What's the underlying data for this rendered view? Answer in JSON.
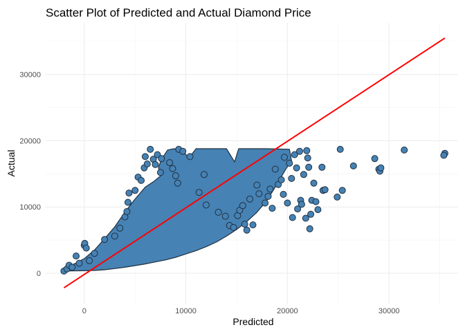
{
  "chart_data": {
    "type": "scatter",
    "title": "Scatter Plot of Predicted and Actual Diamond Price",
    "xlabel": "Predicted",
    "ylabel": "Actual",
    "xlim": [
      -3800,
      36800
    ],
    "ylim": [
      -4700,
      37800
    ],
    "x_ticks": [
      0,
      10000,
      20000,
      30000
    ],
    "y_ticks": [
      0,
      10000,
      20000,
      30000
    ],
    "grid": true,
    "legend": "none",
    "point_fill": "#4682b4",
    "point_stroke": "#1f2f3f",
    "line_color": "#ff0000",
    "dense_cloud": [
      [
        -2000,
        326
      ],
      [
        -1200,
        340
      ],
      [
        -500,
        360
      ],
      [
        0,
        380
      ],
      [
        1000,
        420
      ],
      [
        2000,
        520
      ],
      [
        3000,
        700
      ],
      [
        4000,
        900
      ],
      [
        5000,
        1150
      ],
      [
        6000,
        1400
      ],
      [
        7000,
        1700
      ],
      [
        8000,
        2000
      ],
      [
        9000,
        2400
      ],
      [
        10000,
        2900
      ],
      [
        11000,
        3400
      ],
      [
        12000,
        4000
      ],
      [
        13000,
        4700
      ],
      [
        14000,
        5600
      ],
      [
        15000,
        6600
      ],
      [
        16000,
        7800
      ],
      [
        17000,
        9200
      ],
      [
        18000,
        11000
      ],
      [
        19000,
        13500
      ],
      [
        19800,
        15600
      ],
      [
        20400,
        17000
      ],
      [
        20200,
        18700
      ],
      [
        18000,
        18800
      ],
      [
        16000,
        18800
      ],
      [
        15200,
        18800
      ],
      [
        14800,
        16800
      ],
      [
        14000,
        18800
      ],
      [
        12000,
        18800
      ],
      [
        11000,
        18800
      ],
      [
        10300,
        17400
      ],
      [
        9600,
        18600
      ],
      [
        8800,
        18800
      ],
      [
        8200,
        18600
      ],
      [
        7600,
        17200
      ],
      [
        7300,
        15900
      ],
      [
        7600,
        14800
      ],
      [
        6800,
        13800
      ],
      [
        6000,
        13000
      ],
      [
        4900,
        11000
      ],
      [
        3900,
        9000
      ],
      [
        3000,
        7000
      ],
      [
        2000,
        5200
      ],
      [
        1000,
        3500
      ],
      [
        0,
        2200
      ],
      [
        -1000,
        1400
      ],
      [
        -2000,
        800
      ]
    ],
    "points": [
      [
        -2000,
        326
      ],
      [
        -1700,
        650
      ],
      [
        -1500,
        1200
      ],
      [
        -1200,
        900
      ],
      [
        -800,
        2600
      ],
      [
        -500,
        1500
      ],
      [
        0,
        4200
      ],
      [
        50,
        4500
      ],
      [
        200,
        3800
      ],
      [
        500,
        1900
      ],
      [
        1000,
        3000
      ],
      [
        2000,
        5100
      ],
      [
        3000,
        5600
      ],
      [
        3500,
        6800
      ],
      [
        4000,
        8500
      ],
      [
        4200,
        9300
      ],
      [
        4400,
        12100
      ],
      [
        4300,
        10700
      ],
      [
        5000,
        12500
      ],
      [
        5300,
        14500
      ],
      [
        5600,
        14000
      ],
      [
        5900,
        15900
      ],
      [
        6000,
        17600
      ],
      [
        6200,
        16500
      ],
      [
        6500,
        18700
      ],
      [
        6800,
        17200
      ],
      [
        7000,
        16400
      ],
      [
        7200,
        17900
      ],
      [
        7600,
        17300
      ],
      [
        7500,
        15200
      ],
      [
        8400,
        16700
      ],
      [
        8700,
        15800
      ],
      [
        9000,
        14700
      ],
      [
        9200,
        13600
      ],
      [
        9300,
        18700
      ],
      [
        9700,
        18400
      ],
      [
        10400,
        17600
      ],
      [
        11300,
        12200
      ],
      [
        11800,
        14900
      ],
      [
        12000,
        10300
      ],
      [
        13200,
        9200
      ],
      [
        13900,
        8600
      ],
      [
        14300,
        7200
      ],
      [
        14700,
        6900
      ],
      [
        15100,
        8700
      ],
      [
        15300,
        9500
      ],
      [
        15600,
        10200
      ],
      [
        15800,
        7400
      ],
      [
        16000,
        6500
      ],
      [
        16300,
        11200
      ],
      [
        16600,
        7300
      ],
      [
        17000,
        13300
      ],
      [
        17200,
        12000
      ],
      [
        17800,
        10600
      ],
      [
        18100,
        11600
      ],
      [
        18300,
        12700
      ],
      [
        18500,
        9800
      ],
      [
        18800,
        15700
      ],
      [
        19100,
        13400
      ],
      [
        19400,
        14100
      ],
      [
        19600,
        11900
      ],
      [
        19700,
        17500
      ],
      [
        20000,
        10600
      ],
      [
        20200,
        16600
      ],
      [
        20400,
        14300
      ],
      [
        20500,
        8400
      ],
      [
        20700,
        17900
      ],
      [
        20900,
        15900
      ],
      [
        21000,
        9700
      ],
      [
        21200,
        18400
      ],
      [
        21300,
        11000
      ],
      [
        21400,
        10400
      ],
      [
        21600,
        14900
      ],
      [
        21800,
        8300
      ],
      [
        21900,
        18500
      ],
      [
        22000,
        17400
      ],
      [
        22100,
        16000
      ],
      [
        22200,
        6700
      ],
      [
        22300,
        8900
      ],
      [
        22400,
        11000
      ],
      [
        22600,
        13600
      ],
      [
        22800,
        10800
      ],
      [
        23000,
        9600
      ],
      [
        23400,
        16000
      ],
      [
        23500,
        12500
      ],
      [
        23700,
        12600
      ],
      [
        24900,
        11500
      ],
      [
        25200,
        18700
      ],
      [
        25400,
        12500
      ],
      [
        26500,
        16200
      ],
      [
        28600,
        17300
      ],
      [
        29000,
        15700
      ],
      [
        29100,
        15400
      ],
      [
        29200,
        15900
      ],
      [
        31500,
        18600
      ],
      [
        35500,
        18100
      ],
      [
        35400,
        17800
      ]
    ],
    "line": [
      [
        -2000,
        -2200
      ],
      [
        35500,
        35500
      ]
    ]
  }
}
